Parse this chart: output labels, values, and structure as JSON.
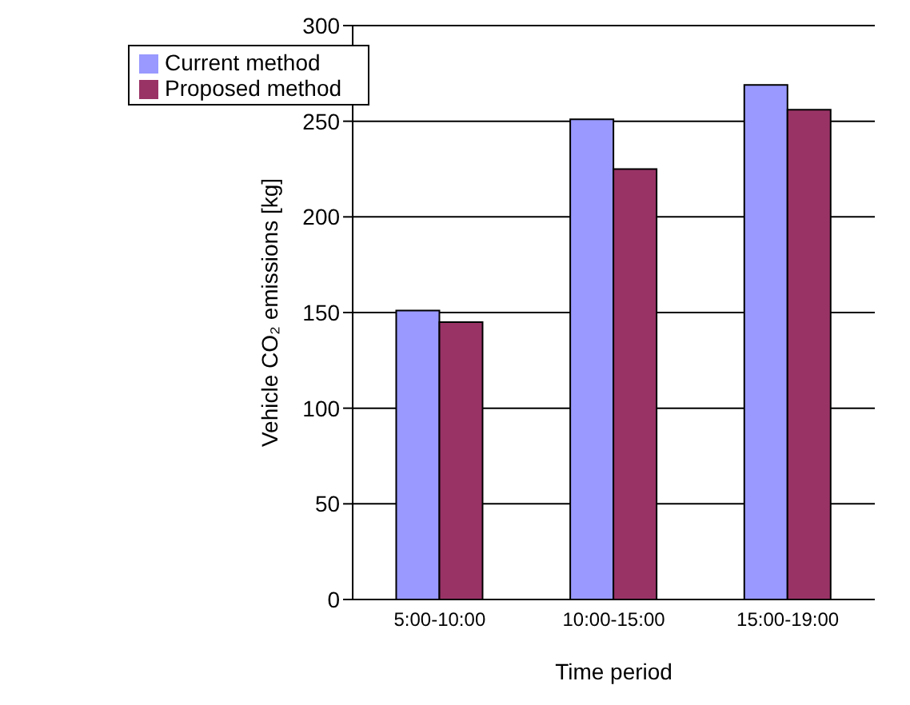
{
  "chart_data": {
    "type": "bar",
    "xlabel": "Time period",
    "ylabel": "Vehicle CO₂ emissions [kg]",
    "categories": [
      "5:00-10:00",
      "10:00-15:00",
      "15:00-19:00"
    ],
    "series": [
      {
        "name": "Current method",
        "color": "#9999ff",
        "values": [
          151,
          251,
          269
        ]
      },
      {
        "name": "Proposed method",
        "color": "#993366",
        "values": [
          145,
          225,
          256
        ]
      }
    ],
    "ylim": [
      0,
      300
    ],
    "yticks": [
      0,
      50,
      100,
      150,
      200,
      250,
      300
    ],
    "grid": "y",
    "legend": "top left"
  }
}
